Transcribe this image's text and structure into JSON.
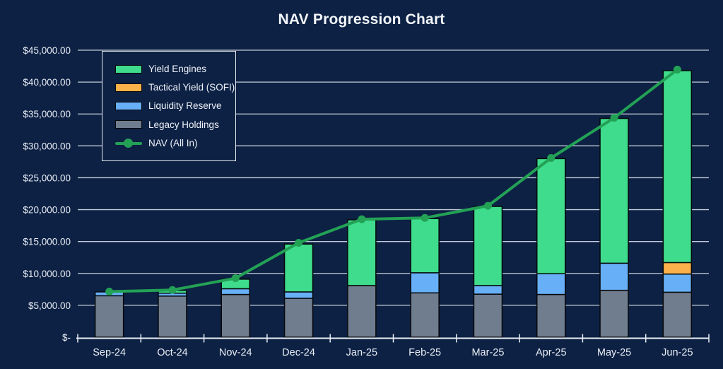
{
  "page": {
    "background": "#0d2144"
  },
  "chart_data": {
    "type": "stacked-bar-with-line",
    "title": "NAV Progression Chart",
    "categories": [
      "Sep-24",
      "Oct-24",
      "Nov-24",
      "Dec-24",
      "Jan-25",
      "Feb-25",
      "Mar-25",
      "Apr-25",
      "May-25",
      "Jun-25"
    ],
    "bar_series": [
      {
        "name": "Legacy Holdings",
        "color": "#6f7d8e",
        "values": [
          6500,
          6450,
          6700,
          6100,
          8100,
          6950,
          6750,
          6700,
          7350,
          7050
        ]
      },
      {
        "name": "Liquidity Reserve",
        "color": "#67b0f8",
        "values": [
          600,
          450,
          900,
          1000,
          0,
          3150,
          1350,
          3250,
          4250,
          2850
        ]
      },
      {
        "name": "Tactical Yield (SOFI)",
        "color": "#fcb24a",
        "values": [
          0,
          0,
          0,
          0,
          0,
          0,
          0,
          0,
          0,
          1800
        ]
      },
      {
        "name": "Yield Engines",
        "color": "#3edc8c",
        "values": [
          0,
          450,
          1500,
          7500,
          10300,
          8500,
          12400,
          18050,
          22700,
          30100
        ]
      }
    ],
    "bar_totals": [
      7100,
      7350,
      9100,
      14600,
      18400,
      18600,
      20500,
      28000,
      34300,
      41800
    ],
    "line_series": {
      "name": "NAV (All In)",
      "color": "#23a155",
      "values": [
        7150,
        7400,
        9250,
        14800,
        18500,
        18700,
        20600,
        28100,
        34400,
        41950
      ]
    },
    "y_axis": {
      "min": 0,
      "max": 45000,
      "step": 5000,
      "tick_labels": [
        "$45,000.00",
        "$40,000.00",
        "$35,000.00",
        "$30,000.00",
        "$25,000.00",
        "$20,000.00",
        "$15,000.00",
        "$10,000.00",
        "$5,000.00",
        "$-"
      ]
    },
    "grid": true,
    "legend": {
      "position": "top-left",
      "entries": [
        {
          "label": "Yield Engines",
          "color": "#3edc8c",
          "kind": "box"
        },
        {
          "label": "Tactical Yield (SOFI)",
          "color": "#fcb24a",
          "kind": "box"
        },
        {
          "label": "Liquidity Reserve",
          "color": "#67b0f8",
          "kind": "box"
        },
        {
          "label": "Legacy Holdings",
          "color": "#6f7d8e",
          "kind": "box"
        },
        {
          "label": "NAV (All In)",
          "color": "#23a155",
          "kind": "line"
        }
      ]
    },
    "style": {
      "gridline_color": "#c6cdd8",
      "axis_color": "#e8edf3",
      "label_color": "#e9eef5",
      "bar_outline": "#06080b"
    }
  }
}
